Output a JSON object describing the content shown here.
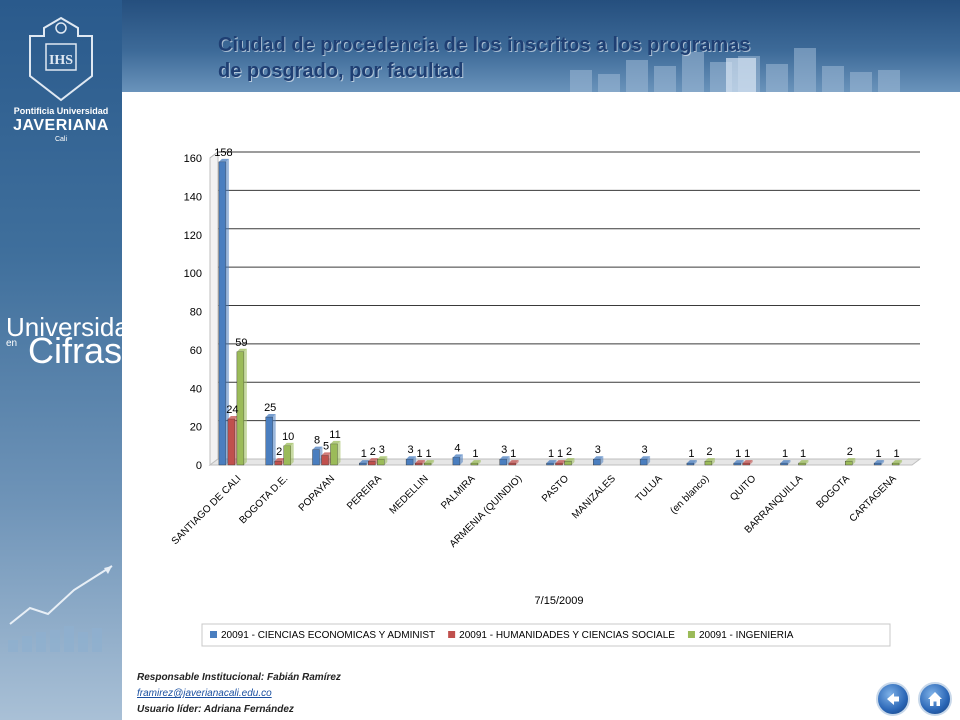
{
  "sidebar": {
    "logo_line1": "Pontificia Universidad",
    "logo_line2": "JAVERIANA",
    "logo_line3": "Cali",
    "brand_word1": "Universidad",
    "brand_word2": "en",
    "brand_word3": "Cifras"
  },
  "title": "Ciudad de procedencia de los inscritos a los programas de posgrado, por facultad",
  "footer": {
    "responsable": "Responsable Institucional: Fabián Ramírez",
    "email": "framirez@javerianacali.edu.co",
    "lider": "Usuario líder: Adriana Fernández"
  },
  "colors": {
    "series1": "#4a7ebf",
    "series2": "#c0504d",
    "series3": "#9bbb59"
  },
  "chart_data": {
    "type": "bar",
    "categories": [
      "SANTIAGO DE CALI",
      "BOGOTA D.E.",
      "POPAYAN",
      "PEREIRA",
      "MEDELLIN",
      "PALMIRA",
      "ARMENIA (QUINDIO)",
      "PASTO",
      "MANIZALES",
      "TULUA",
      "(en blanco)",
      "QUITO",
      "BARRANQUILLA",
      "BOGOTA",
      "CARTAGENA"
    ],
    "series": [
      {
        "name": "20091 - CIENCIAS ECONOMICAS Y ADMINIST",
        "values": [
          158,
          25,
          8,
          1,
          3,
          4,
          3,
          1,
          3,
          3,
          1,
          1,
          1,
          null,
          1
        ]
      },
      {
        "name": "20091 - HUMANIDADES Y CIENCIAS SOCIALE",
        "values": [
          24,
          2,
          5,
          2,
          1,
          null,
          1,
          1,
          null,
          null,
          null,
          1,
          null,
          null,
          null
        ]
      },
      {
        "name": "20091 - INGENIERIA",
        "values": [
          59,
          10,
          11,
          3,
          1,
          1,
          null,
          2,
          null,
          null,
          2,
          null,
          1,
          2,
          1
        ]
      }
    ],
    "xlabel": "7/15/2009",
    "ylabel": "",
    "ylim": [
      0,
      160
    ],
    "yticks": [
      0,
      20,
      40,
      60,
      80,
      100,
      120,
      140,
      160
    ],
    "grid": true,
    "legend": "bottom"
  }
}
